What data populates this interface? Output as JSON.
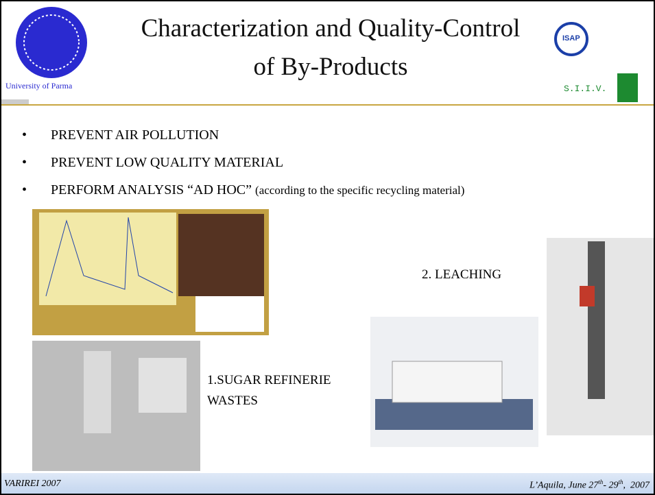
{
  "header": {
    "title_line1": "Characterization and Quality-Control",
    "title_line2": "of By-Products",
    "university": "University of Parma",
    "logo_right_top": "ISAP",
    "logo_right_bottom": "S.I.I.V."
  },
  "bullets": [
    {
      "text": "PREVENT AIR POLLUTION"
    },
    {
      "text": "PREVENT LOW QUALITY MATERIAL"
    },
    {
      "text": "PERFORM ANALYSIS “AD HOC”",
      "note": "(according to the specific recycling material)"
    }
  ],
  "captions": {
    "sugar_line1": "1.SUGAR REFINERIE",
    "sugar_line2": "WASTES",
    "leaching": "2. LEACHING"
  },
  "footer": {
    "left": "VARIREI 2007",
    "right_1": "L’Aquila, June 27",
    "right_sup1": "th",
    "right_2": "- 29",
    "right_sup2": "th",
    "right_3": ",  2007"
  }
}
